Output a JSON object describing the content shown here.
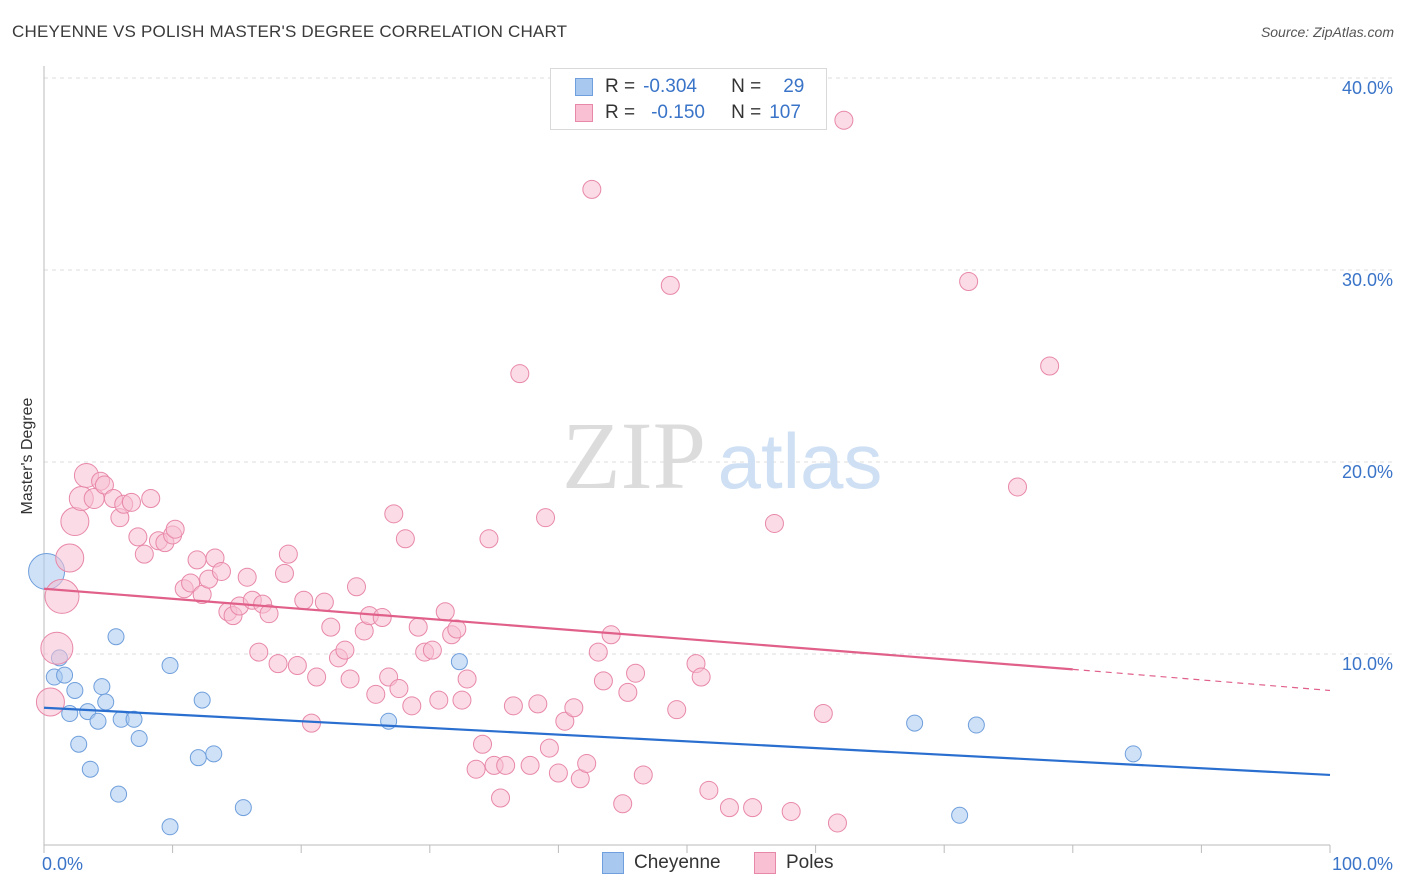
{
  "title": "CHEYENNE VS POLISH MASTER'S DEGREE CORRELATION CHART",
  "source": "Source: ZipAtlas.com",
  "watermark": {
    "zip": "ZIP",
    "atlas": "atlas"
  },
  "legend_stats": [
    {
      "r_label": "R =",
      "r_value": "-0.304",
      "n_label": "N =",
      "n_value": "29",
      "color": "#a8c8f0",
      "border": "#6f9fdc"
    },
    {
      "r_label": "R =",
      "r_value": "-0.150",
      "n_label": "N =",
      "n_value": "107",
      "color": "#f8c0d2",
      "border": "#e888a8"
    }
  ],
  "chart_data": {
    "type": "scatter",
    "title": "CHEYENNE VS POLISH MASTER'S DEGREE CORRELATION CHART",
    "xlabel": "",
    "ylabel": "Master's Degree",
    "xlim": [
      0,
      100
    ],
    "ylim": [
      0,
      42
    ],
    "x_tick_labels": [
      "0.0%",
      "100.0%"
    ],
    "y_ticks": [
      10,
      20,
      30,
      40
    ],
    "y_tick_labels": [
      "10.0%",
      "20.0%",
      "30.0%",
      "40.0%"
    ],
    "grid": "horizontal dashed",
    "legend_position": "bottom",
    "series": [
      {
        "name": "Cheyenne",
        "color": "#a8c8f0",
        "stroke": "#6f9fdc",
        "trend": {
          "x": [
            0,
            100
          ],
          "y": [
            7.2,
            3.7
          ],
          "color": "#2a6fcf"
        },
        "points": [
          [
            0.2,
            14.3,
            18
          ],
          [
            0.8,
            8.8,
            8
          ],
          [
            1.2,
            9.8,
            8
          ],
          [
            1.6,
            8.9,
            8
          ],
          [
            2.0,
            6.9,
            8
          ],
          [
            2.4,
            8.1,
            8
          ],
          [
            2.7,
            5.3,
            8
          ],
          [
            3.4,
            7.0,
            8
          ],
          [
            3.6,
            4.0,
            8
          ],
          [
            4.2,
            6.5,
            8
          ],
          [
            4.5,
            8.3,
            8
          ],
          [
            4.8,
            7.5,
            8
          ],
          [
            5.6,
            10.9,
            8
          ],
          [
            5.8,
            2.7,
            8
          ],
          [
            6.0,
            6.6,
            8
          ],
          [
            7.0,
            6.6,
            8
          ],
          [
            7.4,
            5.6,
            8
          ],
          [
            9.8,
            9.4,
            8
          ],
          [
            9.8,
            1.0,
            8
          ],
          [
            12.0,
            4.6,
            8
          ],
          [
            12.3,
            7.6,
            8
          ],
          [
            13.2,
            4.8,
            8
          ],
          [
            15.5,
            2.0,
            8
          ],
          [
            26.8,
            6.5,
            8
          ],
          [
            32.3,
            9.6,
            8
          ],
          [
            67.7,
            6.4,
            8
          ],
          [
            71.2,
            1.6,
            8
          ],
          [
            72.5,
            6.3,
            8
          ],
          [
            84.7,
            4.8,
            8
          ]
        ]
      },
      {
        "name": "Poles",
        "color": "#f8c0d2",
        "stroke": "#e888a8",
        "trend": {
          "x": [
            0,
            80
          ],
          "y": [
            13.4,
            9.2
          ],
          "dash_x": [
            80,
            100
          ],
          "dash_y": [
            9.2,
            8.1
          ],
          "color": "#e0608a"
        },
        "points": [
          [
            0.5,
            7.5,
            14
          ],
          [
            1.0,
            10.3,
            16
          ],
          [
            1.4,
            13.0,
            17
          ],
          [
            2.0,
            15.0,
            14
          ],
          [
            2.4,
            16.9,
            14
          ],
          [
            2.9,
            18.1,
            12
          ],
          [
            3.3,
            19.3,
            12
          ],
          [
            3.9,
            18.1,
            10
          ],
          [
            4.4,
            19.0,
            9
          ],
          [
            4.7,
            18.8,
            9
          ],
          [
            5.4,
            18.1,
            9
          ],
          [
            5.9,
            17.1,
            9
          ],
          [
            6.2,
            17.8,
            9
          ],
          [
            6.8,
            17.9,
            9
          ],
          [
            7.3,
            16.1,
            9
          ],
          [
            7.8,
            15.2,
            9
          ],
          [
            8.3,
            18.1,
            9
          ],
          [
            8.9,
            15.9,
            9
          ],
          [
            9.4,
            15.8,
            9
          ],
          [
            10.0,
            16.2,
            9
          ],
          [
            10.2,
            16.5,
            9
          ],
          [
            10.9,
            13.4,
            9
          ],
          [
            11.4,
            13.7,
            9
          ],
          [
            11.9,
            14.9,
            9
          ],
          [
            12.3,
            13.1,
            9
          ],
          [
            12.8,
            13.9,
            9
          ],
          [
            13.3,
            15.0,
            9
          ],
          [
            13.8,
            14.3,
            9
          ],
          [
            14.3,
            12.2,
            9
          ],
          [
            14.7,
            12.0,
            9
          ],
          [
            15.2,
            12.5,
            9
          ],
          [
            15.8,
            14.0,
            9
          ],
          [
            16.2,
            12.8,
            9
          ],
          [
            16.7,
            10.1,
            9
          ],
          [
            17.0,
            12.6,
            9
          ],
          [
            17.5,
            12.1,
            9
          ],
          [
            18.2,
            9.5,
            9
          ],
          [
            18.7,
            14.2,
            9
          ],
          [
            19.0,
            15.2,
            9
          ],
          [
            19.7,
            9.4,
            9
          ],
          [
            20.2,
            12.8,
            9
          ],
          [
            20.8,
            6.4,
            9
          ],
          [
            21.2,
            8.8,
            9
          ],
          [
            21.8,
            12.7,
            9
          ],
          [
            22.3,
            11.4,
            9
          ],
          [
            22.9,
            9.8,
            9
          ],
          [
            23.4,
            10.2,
            9
          ],
          [
            23.8,
            8.7,
            9
          ],
          [
            24.3,
            13.5,
            9
          ],
          [
            24.9,
            11.2,
            9
          ],
          [
            25.3,
            12.0,
            9
          ],
          [
            25.8,
            7.9,
            9
          ],
          [
            26.3,
            11.9,
            9
          ],
          [
            26.8,
            8.8,
            9
          ],
          [
            27.2,
            17.3,
            9
          ],
          [
            27.6,
            8.2,
            9
          ],
          [
            28.1,
            16.0,
            9
          ],
          [
            28.6,
            7.3,
            9
          ],
          [
            29.1,
            11.4,
            9
          ],
          [
            29.6,
            10.1,
            9
          ],
          [
            30.2,
            10.2,
            9
          ],
          [
            30.7,
            7.6,
            9
          ],
          [
            31.2,
            12.2,
            9
          ],
          [
            31.7,
            11.0,
            9
          ],
          [
            32.1,
            11.3,
            9
          ],
          [
            32.5,
            7.6,
            9
          ],
          [
            32.9,
            8.7,
            9
          ],
          [
            33.6,
            4.0,
            9
          ],
          [
            34.1,
            5.3,
            9
          ],
          [
            34.6,
            16.0,
            9
          ],
          [
            35.0,
            4.2,
            9
          ],
          [
            35.5,
            2.5,
            9
          ],
          [
            35.9,
            4.2,
            9
          ],
          [
            36.5,
            7.3,
            9
          ],
          [
            37.0,
            24.6,
            9
          ],
          [
            37.8,
            4.2,
            9
          ],
          [
            38.4,
            7.4,
            9
          ],
          [
            39.0,
            17.1,
            9
          ],
          [
            39.3,
            5.1,
            9
          ],
          [
            40.0,
            3.8,
            9
          ],
          [
            40.5,
            6.5,
            9
          ],
          [
            41.2,
            7.2,
            9
          ],
          [
            41.7,
            3.5,
            9
          ],
          [
            42.2,
            4.3,
            9
          ],
          [
            42.6,
            34.2,
            9
          ],
          [
            43.1,
            10.1,
            9
          ],
          [
            43.5,
            8.6,
            9
          ],
          [
            44.1,
            11.0,
            9
          ],
          [
            45.0,
            2.2,
            9
          ],
          [
            45.4,
            8.0,
            9
          ],
          [
            46.0,
            9.0,
            9
          ],
          [
            46.6,
            3.7,
            9
          ],
          [
            48.7,
            29.2,
            9
          ],
          [
            49.2,
            7.1,
            9
          ],
          [
            50.7,
            9.5,
            9
          ],
          [
            51.1,
            8.8,
            9
          ],
          [
            51.7,
            2.9,
            9
          ],
          [
            53.3,
            2.0,
            9
          ],
          [
            55.1,
            2.0,
            9
          ],
          [
            56.8,
            16.8,
            9
          ],
          [
            58.1,
            1.8,
            9
          ],
          [
            60.6,
            6.9,
            9
          ],
          [
            61.7,
            1.2,
            9
          ],
          [
            62.2,
            37.8,
            9
          ],
          [
            71.9,
            29.4,
            9
          ],
          [
            75.7,
            18.7,
            9
          ],
          [
            78.2,
            25.0,
            9
          ]
        ]
      }
    ]
  }
}
